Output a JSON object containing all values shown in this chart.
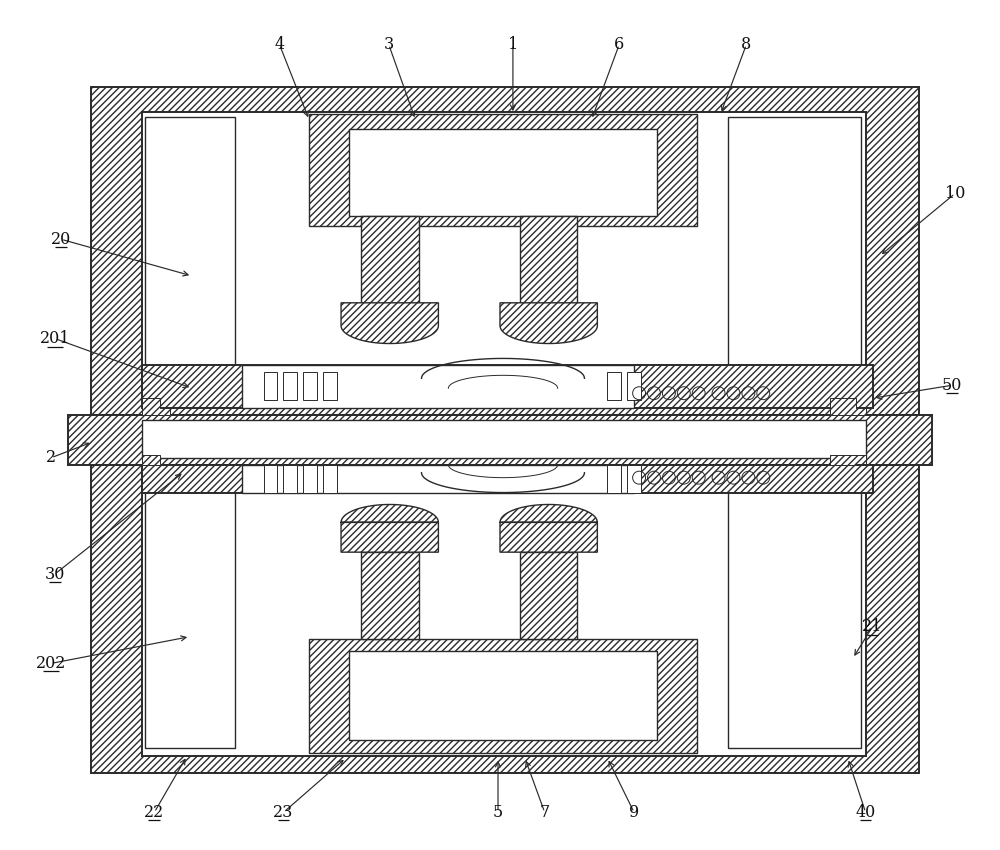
{
  "bg": "#ffffff",
  "lc": "#2a2a2a",
  "lw1": 1.4,
  "lw2": 1.0,
  "lw3": 0.7,
  "fig_w": 10.0,
  "fig_h": 8.5,
  "dpi": 100,
  "hatch": "/////",
  "labels_top": [
    [
      "1",
      513,
      42,
      513,
      108
    ],
    [
      "3",
      388,
      42,
      420,
      115
    ],
    [
      "4",
      278,
      42,
      302,
      118
    ],
    [
      "6",
      620,
      42,
      598,
      115
    ],
    [
      "8",
      748,
      42,
      728,
      108
    ],
    [
      "10",
      958,
      192,
      885,
      252
    ]
  ],
  "labels_left": [
    [
      "20",
      62,
      238,
      192,
      280
    ],
    [
      "201",
      56,
      338,
      192,
      388
    ],
    [
      "2",
      50,
      458,
      92,
      442
    ]
  ],
  "labels_right": [
    [
      "50",
      952,
      385,
      878,
      398
    ]
  ],
  "labels_bottom": [
    [
      "22",
      155,
      815,
      188,
      755
    ],
    [
      "23",
      285,
      815,
      348,
      758
    ],
    [
      "5",
      500,
      815,
      500,
      758
    ],
    [
      "7",
      548,
      815,
      528,
      758
    ],
    [
      "9",
      638,
      815,
      610,
      758
    ],
    [
      "40",
      870,
      815,
      852,
      758
    ]
  ],
  "labels_misc": [
    [
      "30",
      56,
      575,
      185,
      473
    ],
    [
      "202",
      52,
      665,
      192,
      638
    ],
    [
      "21",
      876,
      628,
      857,
      658
    ]
  ],
  "underlined": [
    "20",
    "201",
    "2",
    "50",
    "30",
    "202",
    "21",
    "22",
    "23",
    "40"
  ]
}
